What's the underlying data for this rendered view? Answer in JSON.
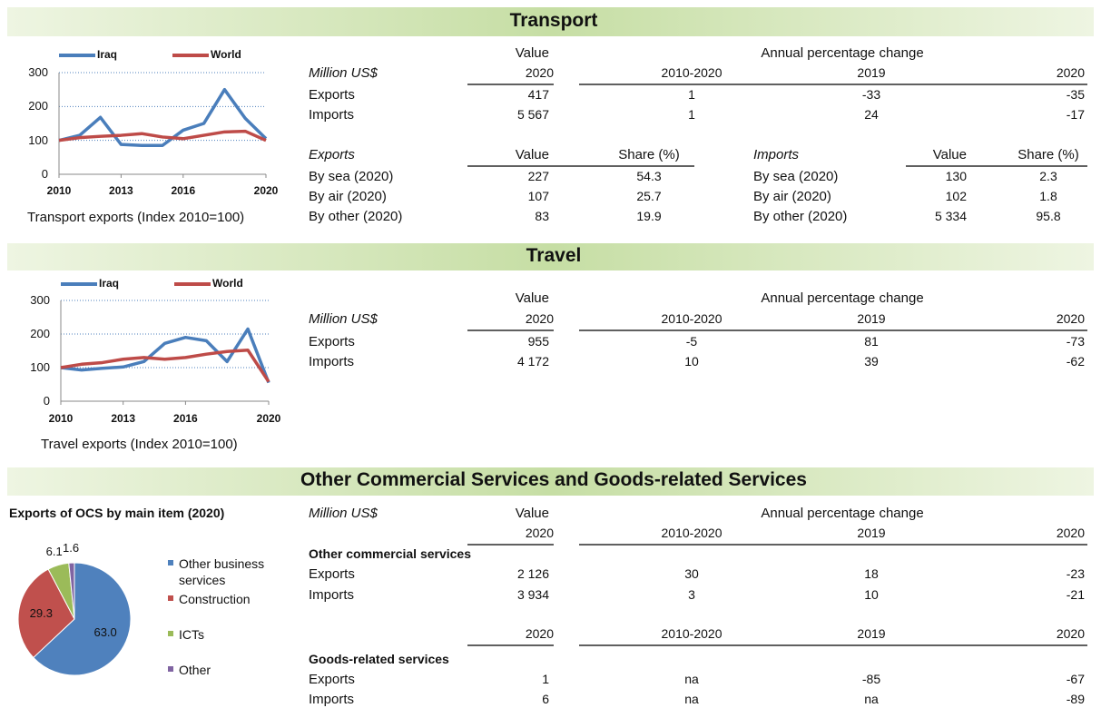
{
  "transport": {
    "title": "Transport",
    "chart": {
      "type": "line",
      "x": [
        2010,
        2011,
        2012,
        2013,
        2014,
        2015,
        2016,
        2017,
        2018,
        2019,
        2020
      ],
      "xlim": [
        2010,
        2020
      ],
      "xticks": [
        2010,
        2013,
        2016,
        2020
      ],
      "ylim": [
        0,
        300
      ],
      "yticks": [
        0,
        100,
        200,
        300
      ],
      "grid": true,
      "legend": "top",
      "series": [
        {
          "name": "Iraq",
          "color": "#4a7ebb",
          "values": [
            100,
            115,
            168,
            88,
            85,
            85,
            130,
            150,
            250,
            165,
            105
          ]
        },
        {
          "name": "World",
          "color": "#be4b48",
          "values": [
            100,
            108,
            112,
            115,
            120,
            110,
            105,
            115,
            125,
            127,
            100
          ]
        }
      ],
      "caption": "Transport exports (Index 2010=100)"
    },
    "table": {
      "unit": "Million US$",
      "value_header": "Value",
      "change_header": "Annual percentage change",
      "columns": [
        "2020",
        "2010-2020",
        "2019",
        "2020"
      ],
      "rows": [
        [
          "Exports",
          "417",
          "1",
          "-33",
          "-35"
        ],
        [
          "Imports",
          "5 567",
          "1",
          "24",
          "-17"
        ]
      ]
    },
    "modes": {
      "exports": {
        "label": "Exports",
        "columns": [
          "Value",
          "Share (%)"
        ],
        "rows": [
          [
            "By sea (2020)",
            "227",
            "54.3"
          ],
          [
            "By air (2020)",
            "107",
            "25.7"
          ],
          [
            "By other (2020)",
            "83",
            "19.9"
          ]
        ]
      },
      "imports": {
        "label": "Imports",
        "columns": [
          "Value",
          "Share (%)"
        ],
        "rows": [
          [
            "By sea (2020)",
            "130",
            "2.3"
          ],
          [
            "By air (2020)",
            "102",
            "1.8"
          ],
          [
            "By other (2020)",
            "5 334",
            "95.8"
          ]
        ]
      }
    }
  },
  "travel": {
    "title": "Travel",
    "chart": {
      "type": "line",
      "x": [
        2010,
        2011,
        2012,
        2013,
        2014,
        2015,
        2016,
        2017,
        2018,
        2019,
        2020
      ],
      "xlim": [
        2010,
        2020
      ],
      "xticks": [
        2010,
        2013,
        2016,
        2020
      ],
      "ylim": [
        0,
        300
      ],
      "yticks": [
        0,
        100,
        200,
        300
      ],
      "grid": true,
      "legend": "top",
      "series": [
        {
          "name": "Iraq",
          "color": "#4a7ebb",
          "values": [
            100,
            93,
            98,
            102,
            118,
            172,
            190,
            180,
            118,
            215,
            55
          ]
        },
        {
          "name": "World",
          "color": "#be4b48",
          "values": [
            100,
            110,
            115,
            125,
            130,
            125,
            130,
            140,
            148,
            152,
            58
          ]
        }
      ],
      "caption": "Travel exports (Index 2010=100)"
    },
    "table": {
      "unit": "Million US$",
      "value_header": "Value",
      "change_header": "Annual percentage change",
      "columns": [
        "2020",
        "2010-2020",
        "2019",
        "2020"
      ],
      "rows": [
        [
          "Exports",
          "955",
          "-5",
          "81",
          "-73"
        ],
        [
          "Imports",
          "4 172",
          "10",
          "39",
          "-62"
        ]
      ]
    }
  },
  "ocs": {
    "title": "Other Commercial Services and Goods-related Services",
    "chart": {
      "type": "pie",
      "title": "Exports of OCS by main item (2020)",
      "categories": [
        "Other business services",
        "Construction",
        "ICTs",
        "Other"
      ],
      "values": [
        63.0,
        29.3,
        6.1,
        1.6
      ],
      "value_labels": [
        "63.0",
        "29.3",
        "6.1",
        "1.6"
      ],
      "colors": [
        "#4f81bd",
        "#c0504d",
        "#9bbb59",
        "#8064a2"
      ],
      "legend": "right"
    },
    "table": {
      "unit": "Million US$",
      "value_header": "Value",
      "change_header": "Annual percentage change",
      "columns": [
        "2020",
        "2010-2020",
        "2019",
        "2020"
      ],
      "groups": [
        {
          "label": "Other commercial services",
          "rows": [
            [
              "Exports",
              "2 126",
              "30",
              "18",
              "-23"
            ],
            [
              "Imports",
              "3 934",
              "3",
              "10",
              "-21"
            ]
          ]
        },
        {
          "columns": [
            "2020",
            "2010-2020",
            "2019",
            "2020"
          ],
          "label": "Goods-related services",
          "rows": [
            [
              "Exports",
              "1",
              "na",
              "-85",
              "-67"
            ],
            [
              "Imports",
              "6",
              "na",
              "na",
              "-89"
            ]
          ]
        }
      ]
    }
  }
}
